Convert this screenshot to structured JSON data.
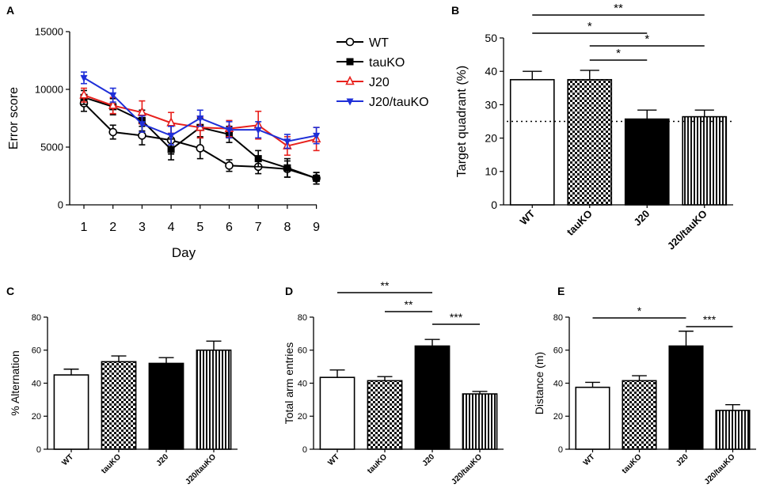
{
  "chart_data": [
    {
      "panel": "A",
      "type": "line",
      "xlabel": "Day",
      "ylabel": "Error score",
      "ylim": [
        0,
        15000
      ],
      "yticks": [
        0,
        5000,
        10000,
        15000
      ],
      "x": [
        1,
        2,
        3,
        4,
        5,
        6,
        7,
        8,
        9
      ],
      "legend_position": "right",
      "series": [
        {
          "name": "WT",
          "marker": "open-circle",
          "color": "#000000",
          "values": [
            8800,
            6300,
            6000,
            5600,
            4900,
            3400,
            3300,
            3100,
            2300
          ],
          "errors": [
            700,
            600,
            800,
            1200,
            900,
            500,
            600,
            700,
            500
          ]
        },
        {
          "name": "tauKO",
          "marker": "filled-square",
          "color": "#000000",
          "values": [
            9300,
            8500,
            7300,
            4800,
            6700,
            6100,
            4000,
            3200,
            2300
          ],
          "errors": [
            600,
            700,
            900,
            900,
            800,
            700,
            700,
            800,
            500
          ]
        },
        {
          "name": "J20",
          "marker": "open-triangle",
          "color": "#e8201c",
          "values": [
            9500,
            8600,
            8000,
            7100,
            6700,
            6600,
            6900,
            5100,
            5700
          ],
          "errors": [
            600,
            700,
            1000,
            900,
            900,
            700,
            1200,
            800,
            1000
          ]
        },
        {
          "name": "J20/tauKO",
          "marker": "filled-triangle-down",
          "color": "#1f2fd8",
          "values": [
            11000,
            9500,
            7000,
            6000,
            7500,
            6500,
            6500,
            5500,
            6000
          ],
          "errors": [
            500,
            600,
            700,
            800,
            700,
            700,
            700,
            600,
            700
          ]
        }
      ]
    },
    {
      "panel": "B",
      "type": "bar",
      "ylabel": "Target quadrant (%)",
      "ylim": [
        0,
        50
      ],
      "yticks": [
        0,
        10,
        20,
        30,
        40,
        50
      ],
      "categories": [
        "WT",
        "tauKO",
        "J20",
        "J20/tauKO"
      ],
      "values": [
        37.5,
        37.5,
        25.7,
        26.4
      ],
      "errors": [
        2.5,
        2.8,
        2.7,
        2.0
      ],
      "patterns": [
        "white",
        "checker",
        "black",
        "vstripes"
      ],
      "reference_line": 25,
      "significance": [
        {
          "from": 0,
          "to": 3,
          "label": "**"
        },
        {
          "from": 0,
          "to": 2,
          "label": "*"
        },
        {
          "from": 1,
          "to": 3,
          "label": "*"
        },
        {
          "from": 1,
          "to": 2,
          "label": "*"
        }
      ]
    },
    {
      "panel": "C",
      "type": "bar",
      "ylabel": "% Alternation",
      "ylim": [
        0,
        80
      ],
      "yticks": [
        0,
        20,
        40,
        60,
        80
      ],
      "categories": [
        "WT",
        "tauKO",
        "J20",
        "J20/tauKO"
      ],
      "values": [
        45,
        53,
        52,
        60
      ],
      "errors": [
        3.5,
        3.5,
        3.5,
        5.5
      ],
      "patterns": [
        "white",
        "checker",
        "black",
        "vstripes"
      ],
      "significance": []
    },
    {
      "panel": "D",
      "type": "bar",
      "ylabel": "Total arm entries",
      "ylim": [
        0,
        80
      ],
      "yticks": [
        0,
        20,
        40,
        60,
        80
      ],
      "categories": [
        "WT",
        "tauKO",
        "J20",
        "J20/tauKO"
      ],
      "values": [
        43.5,
        41.5,
        62.5,
        33.5
      ],
      "errors": [
        4.5,
        2.5,
        4.0,
        1.5
      ],
      "patterns": [
        "white",
        "checker",
        "black",
        "vstripes"
      ],
      "significance": [
        {
          "from": 0,
          "to": 2,
          "label": "**"
        },
        {
          "from": 1,
          "to": 2,
          "label": "**"
        },
        {
          "from": 2,
          "to": 3,
          "label": "***"
        }
      ]
    },
    {
      "panel": "E",
      "type": "bar",
      "ylabel": "Distance (m)",
      "ylim": [
        0,
        80
      ],
      "yticks": [
        0,
        20,
        40,
        60,
        80
      ],
      "categories": [
        "WT",
        "tauKO",
        "J20",
        "J20/tauKO"
      ],
      "values": [
        37.5,
        41.5,
        62.5,
        23.5
      ],
      "errors": [
        3.0,
        3.0,
        9.0,
        3.5
      ],
      "patterns": [
        "white",
        "checker",
        "black",
        "vstripes"
      ],
      "significance": [
        {
          "from": 0,
          "to": 2,
          "label": "*"
        },
        {
          "from": 2,
          "to": 3,
          "label": "***"
        }
      ]
    }
  ]
}
